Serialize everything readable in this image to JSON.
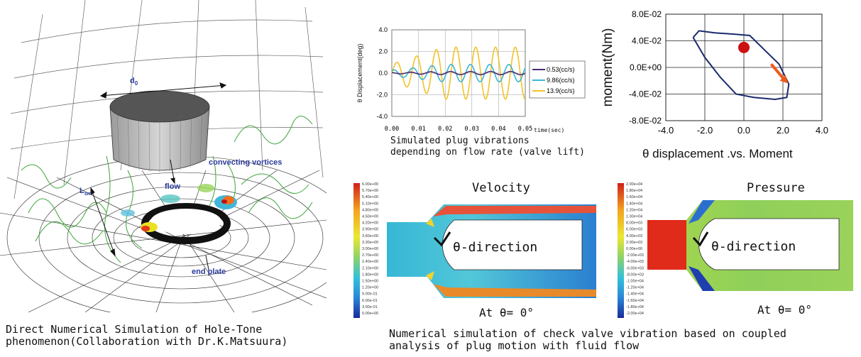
{
  "left_figure": {
    "labels": {
      "d0": "d",
      "d0_sub": "0",
      "convecting": "convecting vortices",
      "flow": "flow",
      "lsm": "L",
      "lsm_sub": "sm",
      "end_plate": "end plate"
    },
    "caption_line1": "Direct Numerical Simulation of Hole-Tone",
    "caption_line2": "phenomenon(Collaboration with Dr.K.Matsuura)"
  },
  "plug_chart": {
    "caption_line1": "Simulated plug vibrations",
    "caption_line2": "depending on flow rate (valve lift)",
    "chart_data": {
      "type": "line",
      "ylabel": "θ Displacement(deg)",
      "xlabel": "time(sec)",
      "xlim": [
        0,
        0.05
      ],
      "ylim": [
        -4,
        4
      ],
      "xticks": [
        "0.00",
        "0.01",
        "0.02",
        "0.03",
        "0.04",
        "0.05"
      ],
      "yticks": [
        "4.0",
        "2.0",
        "0.0",
        "-2.0",
        "-4.0"
      ],
      "legend_position": "right",
      "series": [
        {
          "name": "0.53(cc/s)",
          "color": "#4b2c6f",
          "amplitude": 0.15,
          "period": 0.0075
        },
        {
          "name": "9.86(cc/s)",
          "color": "#3ab6d8",
          "amplitude": 0.8,
          "period": 0.0072
        },
        {
          "name": "13.9(cc/s)",
          "color": "#f2c22a",
          "amplitude": 2.4,
          "period": 0.0074
        }
      ]
    }
  },
  "moment_chart": {
    "caption": "θ displacement .vs. Moment",
    "chart_data": {
      "type": "line",
      "ylabel": "moment(Nm)",
      "xlabel": "θ displacement .vs. Moment",
      "xlim": [
        -4,
        4
      ],
      "ylim": [
        -0.08,
        0.08
      ],
      "xticks": [
        "-4.0",
        "-2.0",
        "0.0",
        "2.0",
        "4.0"
      ],
      "yticks": [
        "8.0E-02",
        "4.0E-02",
        "0.0E+00",
        "-4.0E-02",
        "-8.0E-02"
      ],
      "marker": {
        "x": 0.0,
        "y": 0.03,
        "color": "#cc1111"
      },
      "arrow_color": "#ef5a1a",
      "line_color": "#1a2a6c"
    }
  },
  "velocity_panel": {
    "title": "Velocity",
    "direction_label": "θ-direction",
    "angle_label": "At θ= 0°",
    "legend": [
      "6.00e+00",
      "5.70e+00",
      "5.40e+00",
      "5.10e+00",
      "4.80e+00",
      "4.50e+00",
      "4.20e+00",
      "3.90e+00",
      "3.60e+00",
      "3.30e+00",
      "3.00e+00",
      "2.70e+00",
      "2.40e+00",
      "2.10e+00",
      "1.80e+00",
      "1.50e+00",
      "1.20e+00",
      "9.00e-01",
      "6.00e-01",
      "3.00e-01",
      "0.00e+00"
    ]
  },
  "pressure_panel": {
    "title": "Pressure",
    "direction_label": "θ-direction",
    "angle_label": "At θ= 0°",
    "legend": [
      "2.00e+04",
      "1.80e+04",
      "1.60e+04",
      "1.40e+04",
      "1.20e+04",
      "1.00e+04",
      "8.00e+03",
      "6.00e+03",
      "4.00e+03",
      "2.00e+03",
      "0.00e+00",
      "-2.00e+03",
      "-4.00e+03",
      "-6.00e+03",
      "-8.00e+03",
      "-1.00e+04",
      "-1.20e+04",
      "-1.40e+04",
      "-1.60e+04",
      "-1.80e+04",
      "-2.00e+04"
    ]
  },
  "bottom_caption": {
    "line1": "Numerical simulation of check valve vibration based on coupled",
    "line2": "analysis of plug motion with fluid flow"
  }
}
